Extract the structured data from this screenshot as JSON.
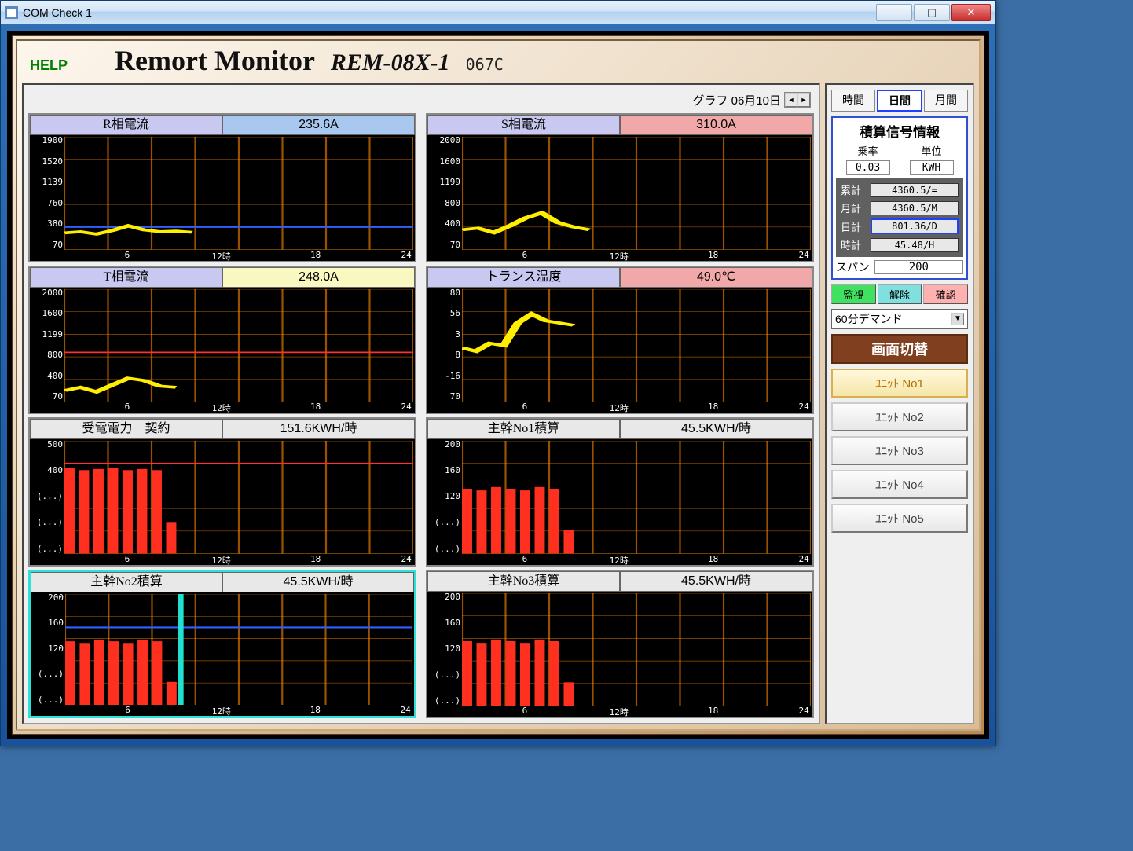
{
  "window": {
    "title": "COM Check 1"
  },
  "header": {
    "help": "HELP",
    "brand": "Remort Monitor",
    "model": "REM-08X-1",
    "code": "067C"
  },
  "graph_date": {
    "label": "グラフ 06月10日"
  },
  "colors": {
    "title_lavender": "#c8c8f0",
    "val_blue": "#a8c8f0",
    "val_pink": "#f0a8a8",
    "val_yellow": "#f8f8c0",
    "val_gray": "#e8e8e8",
    "line": "#ffee00",
    "bar": "#ff3020",
    "ref_red": "#ff3030",
    "ref_blue": "#3060ff",
    "cursor": "#20e0d0"
  },
  "x_axis": {
    "ticks": [
      "6",
      "12時",
      "18",
      "24"
    ],
    "positions": [
      18,
      45,
      72,
      98
    ],
    "domain": 24
  },
  "panels": [
    {
      "id": "r-current",
      "title": "R相電流",
      "value": "235.6A",
      "title_bg": "title_lavender",
      "value_bg": "val_blue",
      "type": "line",
      "y_ticks": [
        "1900",
        "1520",
        "1139",
        "760",
        "380",
        "70"
      ],
      "y_domain": [
        0,
        1900
      ],
      "ref_red": null,
      "ref_blue": 380,
      "data": [
        [
          0,
          280
        ],
        [
          1,
          300
        ],
        [
          2,
          260
        ],
        [
          3,
          320
        ],
        [
          4,
          400
        ],
        [
          5,
          330
        ],
        [
          6,
          300
        ],
        [
          7,
          310
        ],
        [
          8,
          290
        ]
      ],
      "data_extent": 7
    },
    {
      "id": "s-current",
      "title": "S相電流",
      "value": "310.0A",
      "title_bg": "title_lavender",
      "value_bg": "val_pink",
      "type": "line",
      "y_ticks": [
        "2000",
        "1600",
        "1199",
        "800",
        "400",
        "70"
      ],
      "y_domain": [
        0,
        2000
      ],
      "ref_red": null,
      "ref_blue": null,
      "data": [
        [
          0,
          350
        ],
        [
          1,
          380
        ],
        [
          2,
          300
        ],
        [
          3,
          420
        ],
        [
          4,
          560
        ],
        [
          5,
          650
        ],
        [
          6,
          480
        ],
        [
          7,
          400
        ],
        [
          8,
          350
        ]
      ],
      "data_extent": 7
    },
    {
      "id": "t-current",
      "title": "T相電流",
      "value": "248.0A",
      "title_bg": "title_lavender",
      "value_bg": "val_yellow",
      "type": "line",
      "y_ticks": [
        "2000",
        "1600",
        "1199",
        "800",
        "400",
        "70"
      ],
      "y_domain": [
        0,
        2000
      ],
      "ref_red": 880,
      "ref_blue": null,
      "data": [
        [
          0,
          200
        ],
        [
          1,
          260
        ],
        [
          2,
          180
        ],
        [
          3,
          300
        ],
        [
          4,
          420
        ],
        [
          5,
          380
        ],
        [
          6,
          280
        ],
        [
          7,
          260
        ]
      ],
      "data_extent": 7
    },
    {
      "id": "trans-temp",
      "title": "トランス温度",
      "value": "49.0℃",
      "title_bg": "title_lavender",
      "value_bg": "val_pink",
      "type": "line",
      "y_ticks": [
        "80",
        "56",
        "3",
        "8",
        "-16",
        "70"
      ],
      "y_domain": [
        -20,
        80
      ],
      "ref_red": null,
      "ref_blue": null,
      "data": [
        [
          0,
          28
        ],
        [
          1,
          25
        ],
        [
          2,
          32
        ],
        [
          3,
          30
        ],
        [
          4,
          50
        ],
        [
          5,
          58
        ],
        [
          6,
          52
        ],
        [
          7,
          50
        ],
        [
          8,
          48
        ]
      ],
      "data_extent": 8
    },
    {
      "id": "power-contract",
      "title": "受電電力　契約",
      "value": "151.6KWH/時",
      "title_bg": "val_gray",
      "value_bg": "val_gray",
      "type": "bar",
      "y_ticks": [
        "500",
        "400",
        "(...)",
        "(...)",
        "(...)"
      ],
      "y_domain": [
        0,
        500
      ],
      "ref_red": 400,
      "ref_blue": null,
      "data": [
        [
          0,
          380
        ],
        [
          1,
          370
        ],
        [
          2,
          375
        ],
        [
          3,
          380
        ],
        [
          4,
          370
        ],
        [
          5,
          375
        ],
        [
          6,
          370
        ],
        [
          7,
          140
        ]
      ],
      "data_extent": 24
    },
    {
      "id": "main1-integ",
      "title": "主幹No1積算",
      "value": "45.5KWH/時",
      "title_bg": "val_gray",
      "value_bg": "val_gray",
      "type": "bar",
      "y_ticks": [
        "200",
        "160",
        "120",
        "(...)",
        "(...)"
      ],
      "y_domain": [
        0,
        200
      ],
      "ref_red": null,
      "ref_blue": null,
      "data": [
        [
          0,
          115
        ],
        [
          1,
          112
        ],
        [
          2,
          118
        ],
        [
          3,
          115
        ],
        [
          4,
          112
        ],
        [
          5,
          118
        ],
        [
          6,
          115
        ],
        [
          7,
          42
        ]
      ],
      "data_extent": 24
    },
    {
      "id": "main2-integ",
      "title": "主幹No2積算",
      "value": "45.5KWH/時",
      "title_bg": "val_gray",
      "value_bg": "val_gray",
      "type": "bar",
      "selected": true,
      "y_ticks": [
        "200",
        "160",
        "120",
        "(...)",
        "(...)"
      ],
      "y_domain": [
        0,
        200
      ],
      "ref_red": null,
      "ref_blue": 140,
      "cursor_x": 8,
      "data": [
        [
          0,
          115
        ],
        [
          1,
          112
        ],
        [
          2,
          118
        ],
        [
          3,
          115
        ],
        [
          4,
          112
        ],
        [
          5,
          118
        ],
        [
          6,
          115
        ],
        [
          7,
          42
        ]
      ],
      "data_extent": 24
    },
    {
      "id": "main3-integ",
      "title": "主幹No3積算",
      "value": "45.5KWH/時",
      "title_bg": "val_gray",
      "value_bg": "val_gray",
      "type": "bar",
      "y_ticks": [
        "200",
        "160",
        "120",
        "(...)",
        "(...)"
      ],
      "y_domain": [
        0,
        200
      ],
      "ref_red": null,
      "ref_blue": null,
      "data": [
        [
          0,
          115
        ],
        [
          1,
          112
        ],
        [
          2,
          118
        ],
        [
          3,
          115
        ],
        [
          4,
          112
        ],
        [
          5,
          118
        ],
        [
          6,
          115
        ],
        [
          7,
          42
        ]
      ],
      "data_extent": 24
    }
  ],
  "sidebar": {
    "tabs": [
      "時間",
      "日間",
      "月間"
    ],
    "active_tab": 1,
    "info": {
      "title": "積算信号情報",
      "rate_label": "乗率",
      "unit_label": "単位",
      "rate": "0.03",
      "unit": "KWH"
    },
    "totals": [
      {
        "k": "累計",
        "v": "4360.5/=",
        "sel": false
      },
      {
        "k": "月計",
        "v": "4360.5/M",
        "sel": false
      },
      {
        "k": "日計",
        "v": "801.36/D",
        "sel": true
      },
      {
        "k": "時計",
        "v": "45.48/H",
        "sel": false
      }
    ],
    "span_label": "スパン",
    "span_value": "200",
    "actions": [
      "監視",
      "解除",
      "確認"
    ],
    "demand": "60分デマンド",
    "switch_title": "画面切替",
    "units": [
      "ﾕﾆｯﾄ No1",
      "ﾕﾆｯﾄ No2",
      "ﾕﾆｯﾄ No3",
      "ﾕﾆｯﾄ No4",
      "ﾕﾆｯﾄ No5"
    ],
    "unit_selected": 0
  }
}
